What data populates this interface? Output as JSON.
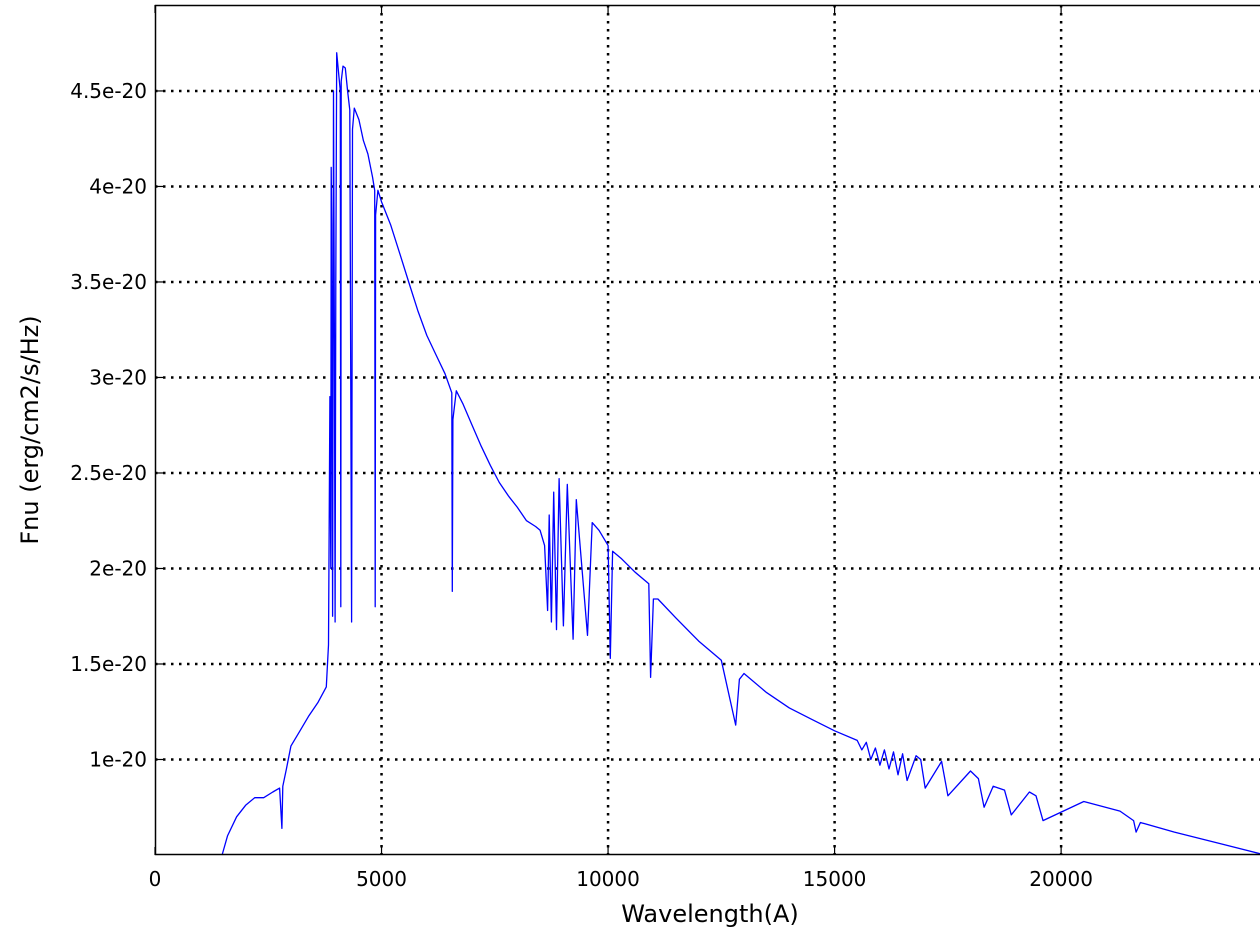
{
  "chart_data": {
    "type": "line",
    "title": "",
    "xlabel": "Wavelength(A)",
    "ylabel": "Fnu (erg/cm2/s/Hz)",
    "xlim": [
      0,
      24500
    ],
    "ylim": [
      5e-21,
      4.95e-20
    ],
    "grid": true,
    "grid_style": "dotted",
    "x_ticks": [
      0,
      5000,
      10000,
      15000,
      20000
    ],
    "x_tick_labels": [
      "0",
      "5000",
      "10000",
      "15000",
      "20000"
    ],
    "y_ticks": [
      1e-20,
      1.5e-20,
      2e-20,
      2.5e-20,
      3e-20,
      3.5e-20,
      4e-20,
      4.5e-20
    ],
    "y_tick_labels": [
      "1e-20",
      "1.5e-20",
      "2e-20",
      "2.5e-20",
      "3e-20",
      "3.5e-20",
      "4e-20",
      "4.5e-20"
    ],
    "series": [
      {
        "color": "#0000ff",
        "x": [
          1480,
          1600,
          1800,
          2000,
          2200,
          2400,
          2600,
          2750,
          2800,
          2820,
          2900,
          3000,
          3200,
          3400,
          3600,
          3780,
          3830,
          3860,
          3880,
          3890,
          3900,
          3920,
          3940,
          3960,
          3975,
          3990,
          4010,
          4050,
          4090,
          4101,
          4110,
          4150,
          4200,
          4250,
          4300,
          4340,
          4360,
          4400,
          4500,
          4600,
          4700,
          4800,
          4850,
          4861,
          4870,
          4920,
          5000,
          5200,
          5400,
          5600,
          5800,
          6000,
          6200,
          6400,
          6550,
          6563,
          6575,
          6650,
          6800,
          7000,
          7200,
          7400,
          7600,
          7800,
          8000,
          8200,
          8400,
          8500,
          8600,
          8665,
          8700,
          8750,
          8800,
          8862,
          8920,
          9015,
          9100,
          9229,
          9300,
          9546,
          9650,
          9800,
          10000,
          10049,
          10100,
          10300,
          10600,
          10900,
          10938,
          11000,
          11100,
          11500,
          12000,
          12500,
          12818,
          12900,
          13000,
          13500,
          14000,
          14500,
          15000,
          15500,
          15600,
          15700,
          15800,
          15900,
          16000,
          16100,
          16200,
          16300,
          16400,
          16500,
          16600,
          16800,
          16900,
          17000,
          17362,
          17500,
          18000,
          18174,
          18300,
          18500,
          18751,
          18900,
          19300,
          19446,
          19600,
          20500,
          21300,
          21600,
          21655,
          21750,
          22500,
          23500,
          24500
        ],
        "y": [
          5e-21,
          6e-21,
          7e-21,
          7.6e-21,
          8e-21,
          8e-21,
          8.3e-21,
          8.5e-21,
          6.4e-21,
          8.6e-21,
          9.5e-21,
          1.07e-20,
          1.15e-20,
          1.23e-20,
          1.3e-20,
          1.38e-20,
          1.6e-20,
          2.9e-20,
          2e-20,
          4.1e-20,
          3.8e-20,
          1.75e-20,
          4.5e-20,
          3.2e-20,
          1.72e-20,
          3.5e-20,
          4.7e-20,
          4.6e-20,
          4.5e-20,
          1.8e-20,
          4.55e-20,
          4.63e-20,
          4.62e-20,
          4.5e-20,
          4.4e-20,
          1.72e-20,
          4.3e-20,
          4.41e-20,
          4.35e-20,
          4.24e-20,
          4.17e-20,
          4.05e-20,
          3.98e-20,
          1.8e-20,
          3.85e-20,
          3.98e-20,
          3.92e-20,
          3.8e-20,
          3.65e-20,
          3.5e-20,
          3.35e-20,
          3.22e-20,
          3.12e-20,
          3.02e-20,
          2.92e-20,
          1.88e-20,
          2.78e-20,
          2.93e-20,
          2.86e-20,
          2.75e-20,
          2.64e-20,
          2.54e-20,
          2.45e-20,
          2.38e-20,
          2.32e-20,
          2.25e-20,
          2.22e-20,
          2.2e-20,
          2.12e-20,
          1.78e-20,
          2.28e-20,
          1.72e-20,
          2.4e-20,
          1.68e-20,
          2.47e-20,
          1.7e-20,
          2.44e-20,
          1.63e-20,
          2.36e-20,
          1.65e-20,
          2.24e-20,
          2.2e-20,
          2.12e-20,
          1.53e-20,
          2.09e-20,
          2.05e-20,
          1.98e-20,
          1.92e-20,
          1.43e-20,
          1.84e-20,
          1.84e-20,
          1.74e-20,
          1.62e-20,
          1.52e-20,
          1.18e-20,
          1.42e-20,
          1.45e-20,
          1.35e-20,
          1.27e-20,
          1.21e-20,
          1.15e-20,
          1.1e-20,
          1.05e-20,
          1.09e-20,
          1e-20,
          1.06e-20,
          9.7e-21,
          1.05e-20,
          9.5e-21,
          1.04e-20,
          9.2e-21,
          1.03e-20,
          8.9e-21,
          1.02e-20,
          1e-20,
          8.5e-21,
          9.9e-21,
          8.1e-21,
          9.4e-21,
          9e-21,
          7.5e-21,
          8.6e-21,
          8.4e-21,
          7.1e-21,
          8.3e-21,
          8.1e-21,
          6.8e-21,
          7.8e-21,
          7.3e-21,
          6.8e-21,
          6.2e-21,
          6.7e-21,
          6.2e-21,
          5.6e-21,
          5e-21
        ]
      }
    ]
  }
}
